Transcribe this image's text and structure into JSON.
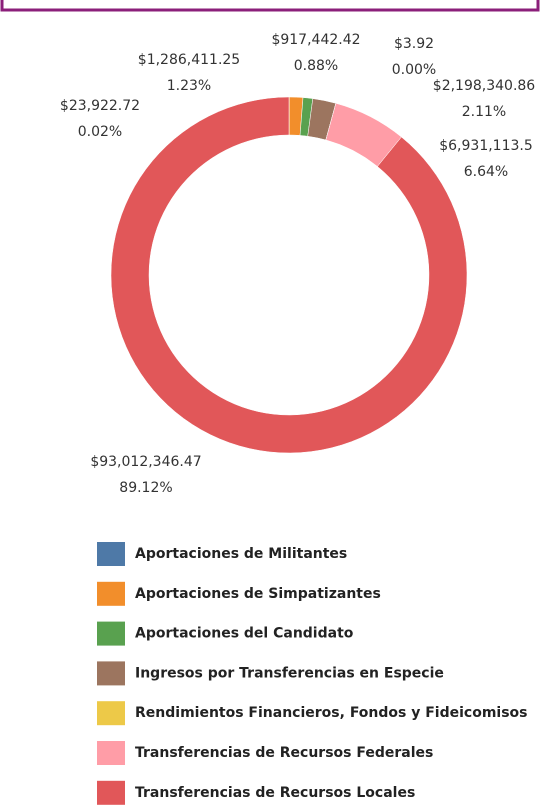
{
  "chart_data": {
    "type": "donut",
    "categories": [
      "Aportaciones de Militantes",
      "Aportaciones de Simpatizantes",
      "Aportaciones del Candidato",
      "Ingresos por Transferencias en Especie",
      "Rendimientos Financieros, Fondos y Fideicomisos",
      "Transferencias de Recursos Federales",
      "Transferencias de Recursos Locales"
    ],
    "values": [
      23922.72,
      1286411.25,
      917442.42,
      2198340.86,
      3.92,
      6931113.5,
      93012346.47
    ],
    "value_labels": [
      "$23,922.72",
      "$1,286,411.25",
      "$917,442.42",
      "$2,198,340.86",
      "$3.92",
      "$6,931,113.5",
      "$93,012,346.47"
    ],
    "percentages": [
      0.02,
      1.23,
      0.88,
      2.11,
      0.0,
      6.64,
      89.12
    ],
    "percentage_labels": [
      "0.02%",
      "1.23%",
      "0.88%",
      "2.11%",
      "0.00%",
      "6.64%",
      "89.12%"
    ],
    "colors": [
      "#4e79a7",
      "#f28e2b",
      "#59a14f",
      "#9c755f",
      "#edc948",
      "#ff9da7",
      "#e15759"
    ]
  }
}
